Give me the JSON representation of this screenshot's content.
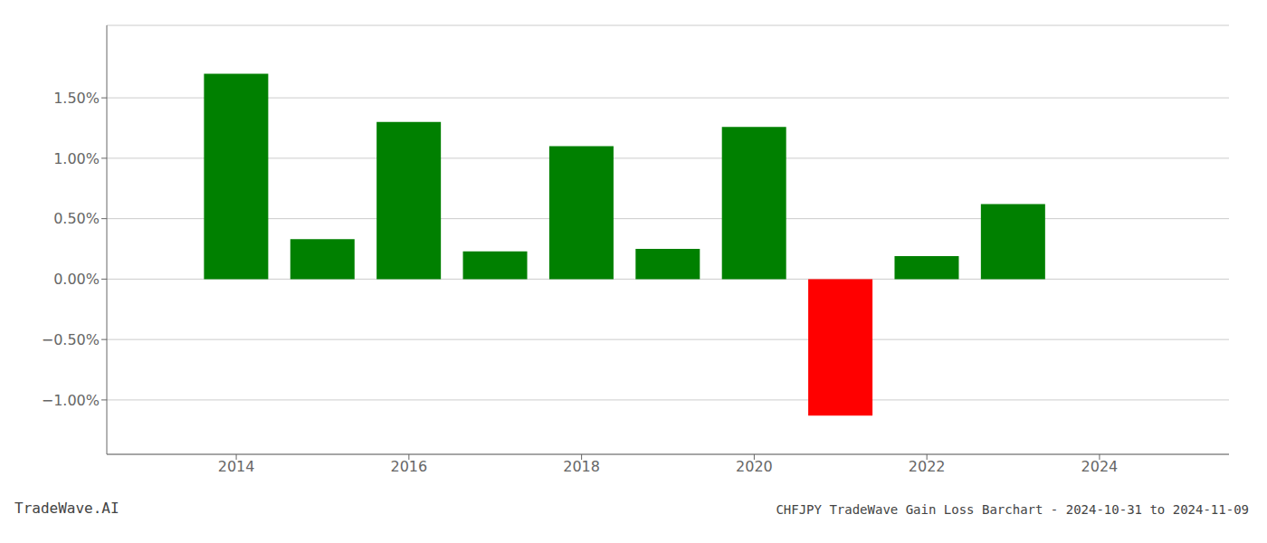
{
  "chart_data": {
    "type": "bar",
    "title": "CHFJPY TradeWave Gain Loss Barchart - 2024-10-31 to 2024-11-09",
    "annotations": [
      "TradeWave.AI"
    ],
    "x": [
      2014,
      2015,
      2016,
      2017,
      2018,
      2019,
      2020,
      2021,
      2022,
      2023
    ],
    "values": [
      1.7,
      0.33,
      1.3,
      0.23,
      1.1,
      0.25,
      1.26,
      -1.13,
      0.19,
      0.62
    ],
    "colors": [
      "#008000",
      "#008000",
      "#008000",
      "#008000",
      "#008000",
      "#008000",
      "#008000",
      "#ff0000",
      "#008000",
      "#008000"
    ],
    "xlim": [
      2012.5,
      2025.5
    ],
    "xticks": [
      2014,
      2016,
      2018,
      2020,
      2022,
      2024
    ],
    "ylim": [
      -1.45,
      2.1
    ],
    "yticks": [
      {
        "value": -1.0,
        "label": "−1.00%"
      },
      {
        "value": -0.5,
        "label": "−0.50%"
      },
      {
        "value": 0.0,
        "label": "0.00%"
      },
      {
        "value": 0.5,
        "label": "0.50%"
      },
      {
        "value": 1.0,
        "label": "1.00%"
      },
      {
        "value": 1.5,
        "label": "1.50%"
      }
    ],
    "grid": true
  }
}
